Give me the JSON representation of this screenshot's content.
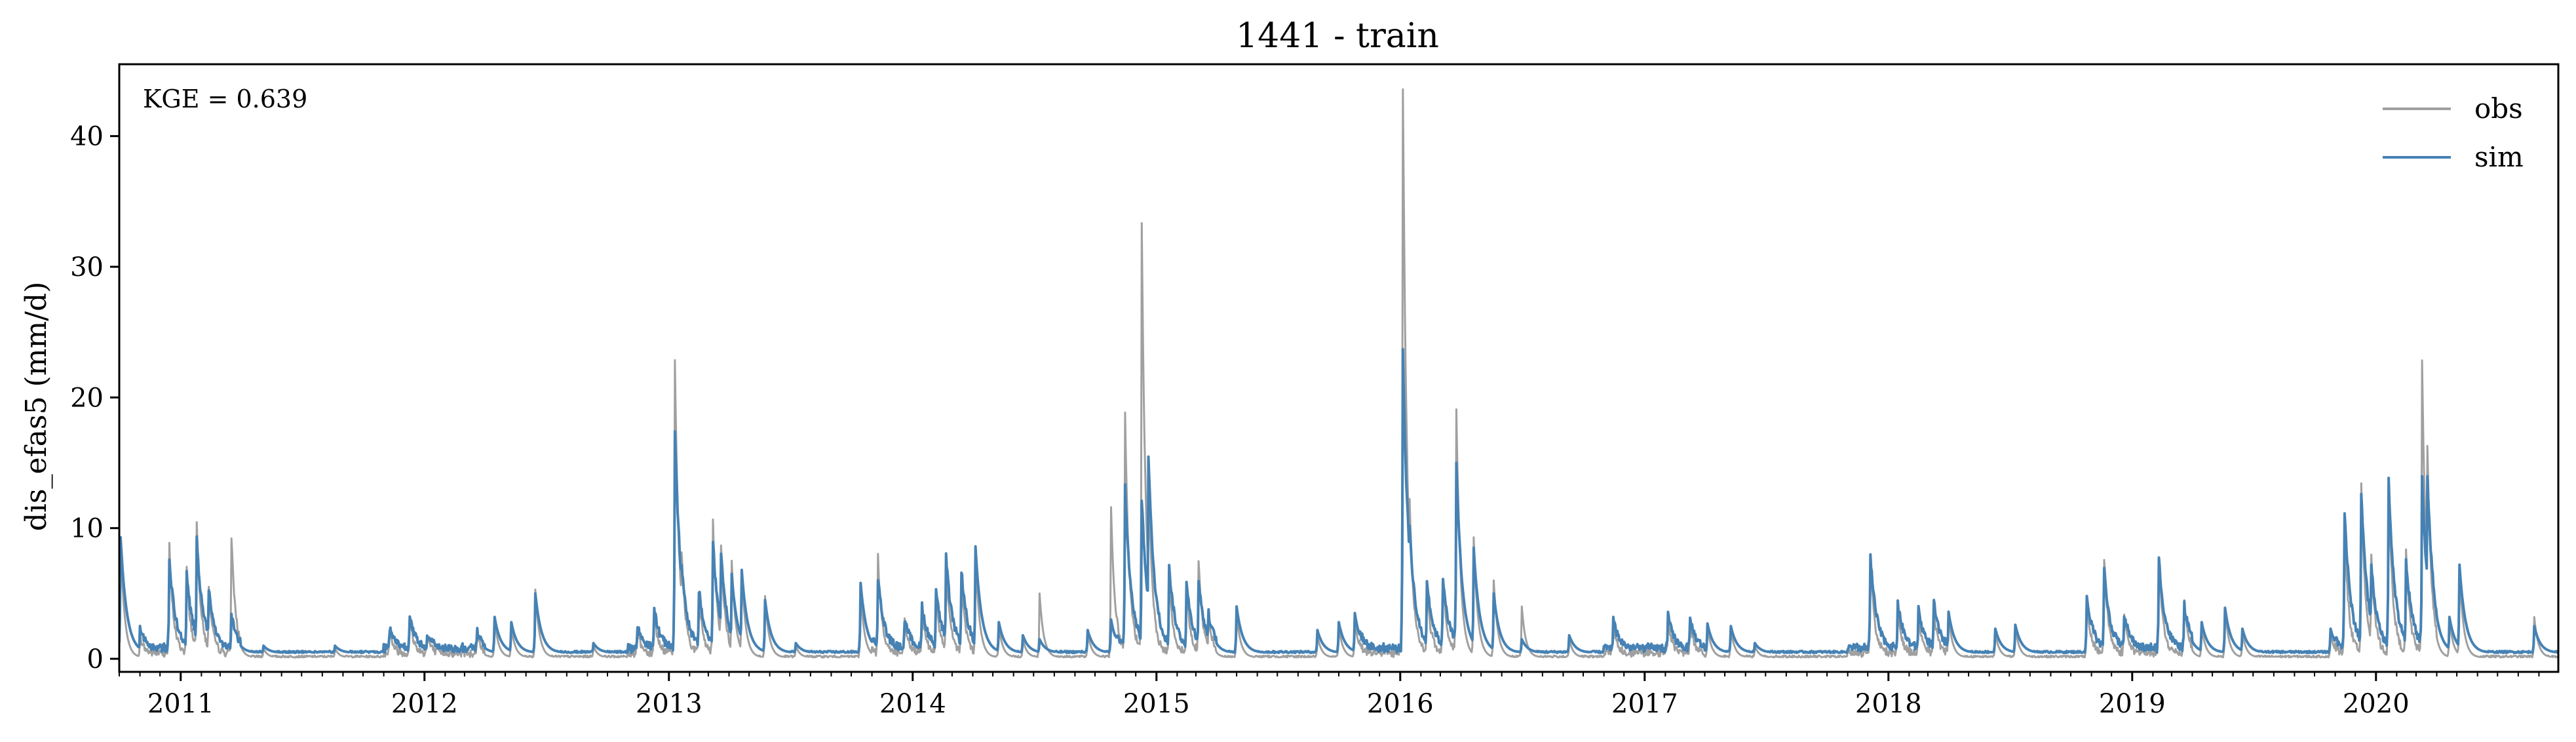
{
  "chart_data": {
    "type": "line",
    "title": "1441 - train",
    "ylabel": "dis_efas5 (mm/d)",
    "xlabel": "",
    "annotation": "KGE = 0.639",
    "xlim": [
      "2010-10-01",
      "2020-09-30"
    ],
    "ylim": [
      -1,
      45.5
    ],
    "yticks": [
      0,
      10,
      20,
      30,
      40
    ],
    "xticks": [
      "2011",
      "2012",
      "2013",
      "2014",
      "2015",
      "2016",
      "2017",
      "2018",
      "2019",
      "2020"
    ],
    "legend": {
      "position": "top-right",
      "entries": [
        "obs",
        "sim"
      ]
    },
    "grid": false,
    "colors": {
      "obs": "#a0a0a0",
      "sim": "#4682b4"
    },
    "series": [
      {
        "name": "obs",
        "peaks": [
          [
            "2010-10-03",
            9.0
          ],
          [
            "2010-11-01",
            1.5
          ],
          [
            "2010-12-15",
            8.3
          ],
          [
            "2011-01-10",
            6.5
          ],
          [
            "2011-01-25",
            10.3
          ],
          [
            "2011-02-12",
            5.0
          ],
          [
            "2011-03-18",
            9.2
          ],
          [
            "2011-05-05",
            0.8
          ],
          [
            "2011-08-20",
            0.8
          ],
          [
            "2011-11-10",
            1.8
          ],
          [
            "2011-12-10",
            2.8
          ],
          [
            "2012-01-05",
            1.5
          ],
          [
            "2012-03-20",
            1.6
          ],
          [
            "2012-04-15",
            3.0
          ],
          [
            "2012-05-10",
            2.5
          ],
          [
            "2012-06-15",
            5.3
          ],
          [
            "2012-09-10",
            1.0
          ],
          [
            "2012-11-15",
            1.8
          ],
          [
            "2012-12-10",
            3.2
          ],
          [
            "2013-01-10",
            22.4
          ],
          [
            "2013-01-20",
            8.0
          ],
          [
            "2013-02-15",
            4.5
          ],
          [
            "2013-03-08",
            10.2
          ],
          [
            "2013-03-20",
            8.5
          ],
          [
            "2013-04-05",
            7.5
          ],
          [
            "2013-04-20",
            6.8
          ],
          [
            "2013-05-25",
            4.8
          ],
          [
            "2013-07-10",
            1.0
          ],
          [
            "2013-10-15",
            5.2
          ],
          [
            "2013-11-10",
            7.5
          ],
          [
            "2013-12-20",
            2.5
          ],
          [
            "2014-01-15",
            3.5
          ],
          [
            "2014-02-05",
            4.5
          ],
          [
            "2014-02-20",
            7.0
          ],
          [
            "2014-03-15",
            6.0
          ],
          [
            "2014-04-05",
            8.2
          ],
          [
            "2014-05-10",
            2.5
          ],
          [
            "2014-06-15",
            1.5
          ],
          [
            "2014-07-10",
            5.0
          ],
          [
            "2014-09-20",
            2.0
          ],
          [
            "2014-10-25",
            11.6
          ],
          [
            "2014-11-15",
            18.7
          ],
          [
            "2014-12-10",
            32.8
          ],
          [
            "2014-12-20",
            14.0
          ],
          [
            "2015-01-20",
            6.0
          ],
          [
            "2015-02-15",
            5.0
          ],
          [
            "2015-03-05",
            7.3
          ],
          [
            "2015-03-20",
            3.0
          ],
          [
            "2015-05-01",
            3.5
          ],
          [
            "2015-08-30",
            1.8
          ],
          [
            "2015-10-01",
            2.5
          ],
          [
            "2015-10-25",
            3.0
          ],
          [
            "2016-01-05",
            43.5
          ],
          [
            "2016-01-15",
            12.0
          ],
          [
            "2016-02-10",
            5.0
          ],
          [
            "2016-03-05",
            6.0
          ],
          [
            "2016-03-25",
            18.8
          ],
          [
            "2016-04-20",
            9.3
          ],
          [
            "2016-05-20",
            6.0
          ],
          [
            "2016-07-01",
            4.0
          ],
          [
            "2016-09-10",
            1.5
          ],
          [
            "2016-11-15",
            2.5
          ],
          [
            "2017-02-05",
            2.8
          ],
          [
            "2017-03-10",
            2.6
          ],
          [
            "2017-04-05",
            2.5
          ],
          [
            "2017-05-10",
            2.3
          ],
          [
            "2017-06-15",
            1.0
          ],
          [
            "2017-12-05",
            7.5
          ],
          [
            "2018-01-15",
            3.5
          ],
          [
            "2018-02-15",
            3.0
          ],
          [
            "2018-03-10",
            3.5
          ],
          [
            "2018-04-01",
            3.3
          ],
          [
            "2018-06-10",
            2.0
          ],
          [
            "2018-07-10",
            2.4
          ],
          [
            "2018-10-25",
            4.5
          ],
          [
            "2018-11-20",
            7.5
          ],
          [
            "2018-12-20",
            3.0
          ],
          [
            "2019-02-10",
            7.2
          ],
          [
            "2019-03-20",
            4.2
          ],
          [
            "2019-04-15",
            2.5
          ],
          [
            "2019-05-20",
            3.8
          ],
          [
            "2019-06-15",
            2.0
          ],
          [
            "2019-10-25",
            2.0
          ],
          [
            "2019-11-15",
            10.0
          ],
          [
            "2019-12-10",
            13.3
          ],
          [
            "2019-12-25",
            7.5
          ],
          [
            "2020-01-20",
            13.3
          ],
          [
            "2020-02-15",
            8.0
          ],
          [
            "2020-03-10",
            22.6
          ],
          [
            "2020-03-18",
            16.1
          ],
          [
            "2020-04-20",
            3.0
          ],
          [
            "2020-05-05",
            7.0
          ],
          [
            "2020-08-25",
            3.2
          ]
        ]
      },
      {
        "name": "sim",
        "peaks": [
          [
            "2010-10-03",
            9.3
          ],
          [
            "2010-11-01",
            2.0
          ],
          [
            "2010-12-15",
            7.4
          ],
          [
            "2011-01-10",
            6.2
          ],
          [
            "2011-01-25",
            8.8
          ],
          [
            "2011-02-12",
            5.1
          ],
          [
            "2011-03-18",
            3.0
          ],
          [
            "2011-05-05",
            1.0
          ],
          [
            "2011-08-20",
            1.0
          ],
          [
            "2011-11-10",
            2.0
          ],
          [
            "2011-12-10",
            3.0
          ],
          [
            "2012-01-05",
            1.7
          ],
          [
            "2012-03-20",
            1.8
          ],
          [
            "2012-04-15",
            3.2
          ],
          [
            "2012-05-10",
            2.8
          ],
          [
            "2012-06-15",
            5.0
          ],
          [
            "2012-09-10",
            1.2
          ],
          [
            "2012-11-15",
            2.2
          ],
          [
            "2012-12-10",
            3.5
          ],
          [
            "2013-01-10",
            17.1
          ],
          [
            "2013-01-20",
            7.0
          ],
          [
            "2013-02-15",
            5.0
          ],
          [
            "2013-03-08",
            8.5
          ],
          [
            "2013-03-20",
            8.0
          ],
          [
            "2013-04-05",
            6.5
          ],
          [
            "2013-04-20",
            6.8
          ],
          [
            "2013-05-25",
            4.5
          ],
          [
            "2013-07-10",
            1.2
          ],
          [
            "2013-10-15",
            5.8
          ],
          [
            "2013-11-10",
            6.0
          ],
          [
            "2013-12-20",
            2.8
          ],
          [
            "2014-01-15",
            3.8
          ],
          [
            "2014-02-05",
            5.0
          ],
          [
            "2014-02-20",
            7.5
          ],
          [
            "2014-03-15",
            6.5
          ],
          [
            "2014-04-05",
            8.6
          ],
          [
            "2014-05-10",
            2.8
          ],
          [
            "2014-06-15",
            1.8
          ],
          [
            "2014-07-10",
            1.5
          ],
          [
            "2014-09-20",
            2.2
          ],
          [
            "2014-10-25",
            3.0
          ],
          [
            "2014-11-15",
            13.0
          ],
          [
            "2014-12-10",
            12.0
          ],
          [
            "2014-12-20",
            15.2
          ],
          [
            "2015-01-20",
            6.8
          ],
          [
            "2015-02-15",
            5.5
          ],
          [
            "2015-03-05",
            5.8
          ],
          [
            "2015-03-20",
            3.2
          ],
          [
            "2015-05-01",
            4.0
          ],
          [
            "2015-08-30",
            2.2
          ],
          [
            "2015-10-01",
            2.8
          ],
          [
            "2015-10-25",
            3.5
          ],
          [
            "2016-01-05",
            23.1
          ],
          [
            "2016-01-15",
            10.0
          ],
          [
            "2016-02-10",
            5.8
          ],
          [
            "2016-03-05",
            6.0
          ],
          [
            "2016-03-25",
            14.6
          ],
          [
            "2016-04-20",
            8.5
          ],
          [
            "2016-05-20",
            5.0
          ],
          [
            "2016-07-01",
            1.5
          ],
          [
            "2016-09-10",
            1.8
          ],
          [
            "2016-11-15",
            2.7
          ],
          [
            "2017-02-05",
            3.0
          ],
          [
            "2017-03-10",
            2.8
          ],
          [
            "2017-04-05",
            2.7
          ],
          [
            "2017-05-10",
            2.5
          ],
          [
            "2017-06-15",
            1.2
          ],
          [
            "2017-12-05",
            7.6
          ],
          [
            "2018-01-15",
            4.0
          ],
          [
            "2018-02-15",
            3.5
          ],
          [
            "2018-03-10",
            4.0
          ],
          [
            "2018-04-01",
            3.6
          ],
          [
            "2018-06-10",
            2.3
          ],
          [
            "2018-07-10",
            2.6
          ],
          [
            "2018-10-25",
            4.8
          ],
          [
            "2018-11-20",
            6.5
          ],
          [
            "2018-12-20",
            3.2
          ],
          [
            "2019-02-10",
            7.3
          ],
          [
            "2019-03-20",
            3.8
          ],
          [
            "2019-04-15",
            2.8
          ],
          [
            "2019-05-20",
            3.9
          ],
          [
            "2019-06-15",
            2.3
          ],
          [
            "2019-10-25",
            2.3
          ],
          [
            "2019-11-15",
            11.0
          ],
          [
            "2019-12-10",
            12.5
          ],
          [
            "2019-12-25",
            7.0
          ],
          [
            "2020-01-20",
            13.4
          ],
          [
            "2020-02-15",
            7.5
          ],
          [
            "2020-03-10",
            13.5
          ],
          [
            "2020-03-18",
            13.8
          ],
          [
            "2020-04-20",
            3.2
          ],
          [
            "2020-05-05",
            7.2
          ],
          [
            "2020-08-25",
            2.5
          ]
        ]
      }
    ]
  }
}
